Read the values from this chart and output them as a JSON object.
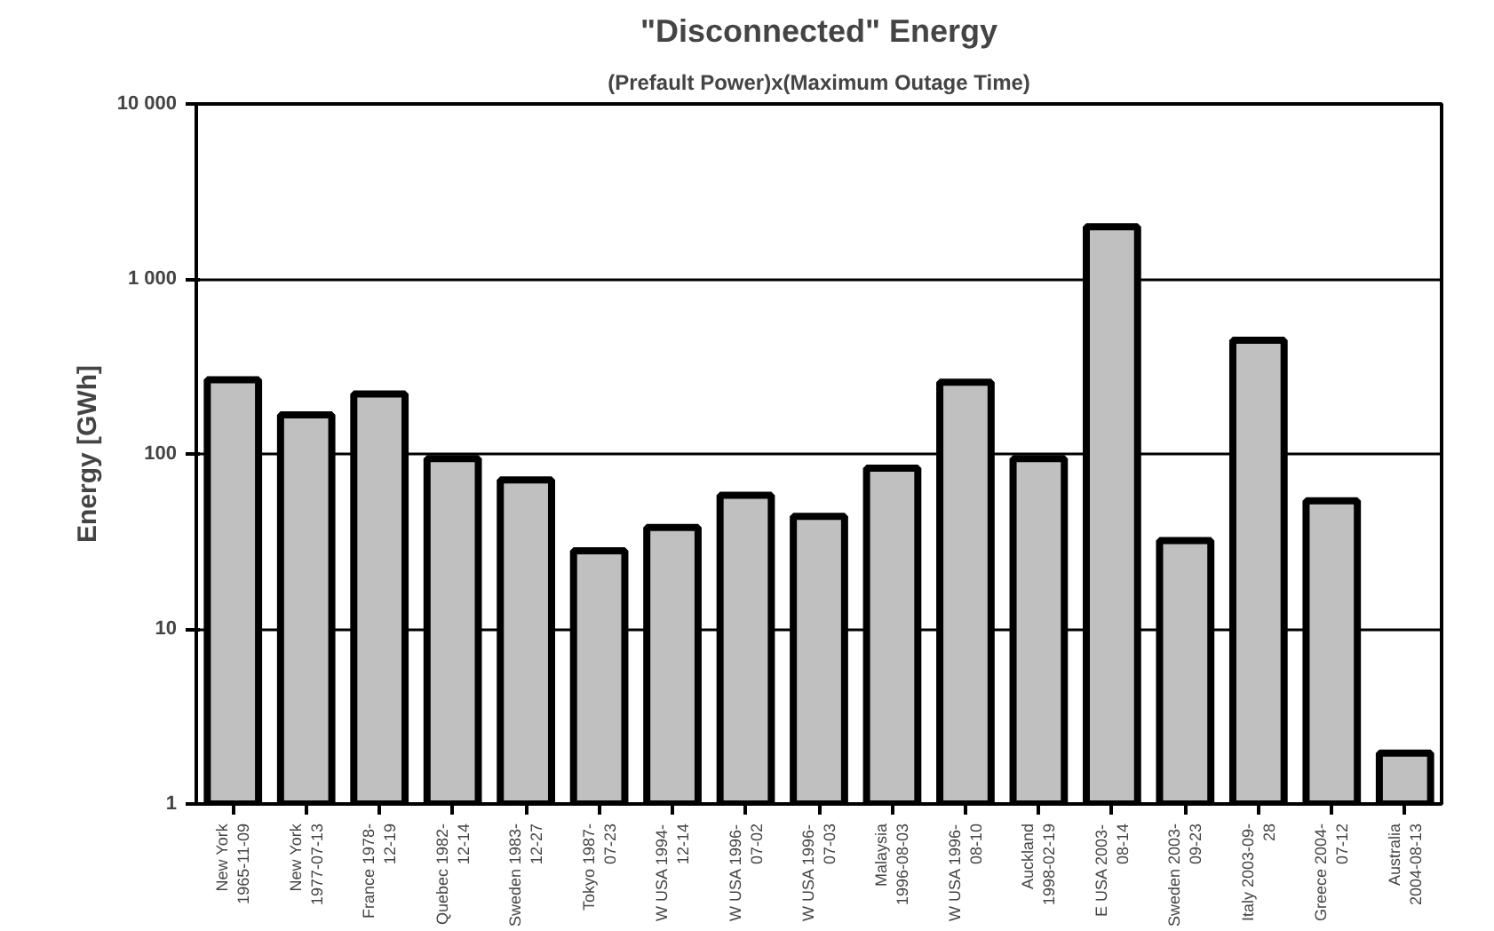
{
  "chart_data": {
    "type": "bar",
    "title": "\"Disconnected\" Energy",
    "subtitle": "(Prefault Power)x(Maximum Outage Time)",
    "ylabel": "Energy [GWh]",
    "categories": [
      "New York\n1965-11-09",
      "New York\n1977-07-13",
      "France 1978-\n12-19",
      "Quebec 1982-\n12-14",
      "Sweden 1983-\n12-27",
      "Tokyo 1987-\n07-23",
      "W USA 1994-\n12-14",
      "W USA 1996-\n07-02",
      "W USA 1996-\n07-03",
      "Malaysia\n1996-08-03",
      "W USA 1996-\n08-10",
      "Auckland\n1998-02-19",
      "E USA 2003-\n08-14",
      "Sweden 2003-\n09-23",
      "Italy 2003-09-\n28",
      "Greece 2004-\n07-12",
      "Australia\n2004-08-13"
    ],
    "values": [
      265,
      167,
      220,
      94,
      71,
      28,
      38,
      58,
      44,
      83,
      257,
      94,
      1990,
      32,
      447,
      54,
      1.95
    ],
    "color": "#c0c0c0",
    "log": true,
    "ylim": [
      1,
      10000
    ],
    "yticks": [
      1,
      10,
      100,
      {
        "value": 1000,
        "label": "1 000"
      },
      {
        "value": 10000,
        "label": "10 000"
      }
    ],
    "grid": "y"
  }
}
